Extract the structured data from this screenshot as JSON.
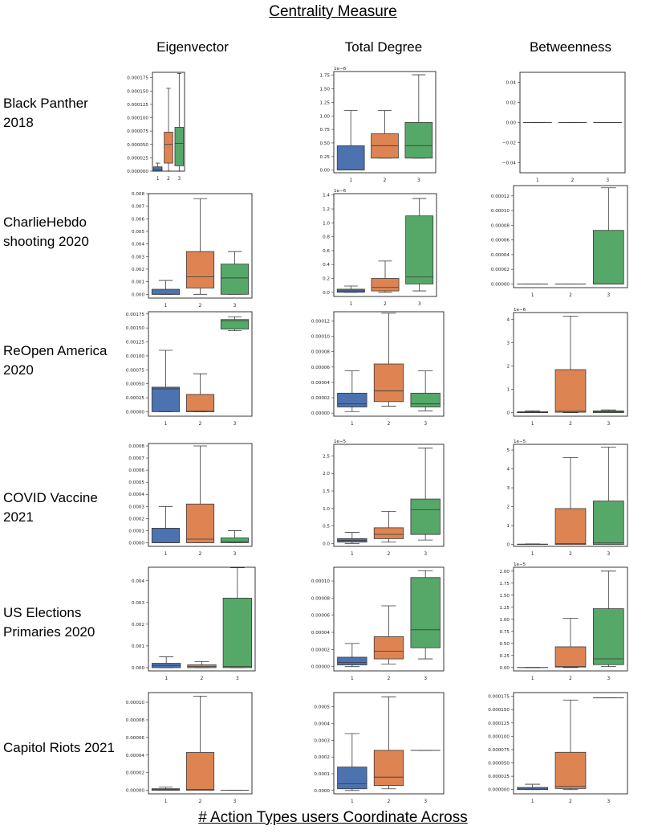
{
  "header": {
    "title": "Centrality Measure",
    "x_axis_label": "# Action Types users Coordinate Across",
    "columns": [
      "Eigenvector",
      "Total Degree",
      "Betweenness"
    ]
  },
  "rows": [
    {
      "line1": "Black Panther",
      "line2": "2018"
    },
    {
      "line1": "CharlieHebdo",
      "line2": "shooting 2020"
    },
    {
      "line1": "ReOpen America",
      "line2": "2020"
    },
    {
      "line1": "COVID Vaccine",
      "line2": "2021"
    },
    {
      "line1": "US Elections",
      "line2": "Primaries 2020"
    },
    {
      "line1": "Capitol Riots 2021",
      "line2": ""
    }
  ],
  "colors": {
    "g1": "#4c72b0",
    "g2": "#dd8452",
    "g3": "#55a868",
    "line": "#3a3a3a"
  },
  "chart_data": [
    {
      "type": "box",
      "row": 0,
      "col": 0,
      "categories": [
        "1",
        "2",
        "3"
      ],
      "ylim": [
        0,
        0.000185
      ],
      "offset": "",
      "ytick_values": [
        0,
        2.5e-05,
        5e-05,
        7.5e-05,
        0.0001,
        0.000125,
        0.00015,
        0.000175
      ],
      "ytick_labels": [
        "0.000000",
        "0.000025",
        "0.000050",
        "0.000075",
        "0.000100",
        "0.000125",
        "0.000150",
        "0.000175"
      ],
      "boxes": [
        {
          "wl": 0,
          "q1": 0,
          "med": 3e-06,
          "q3": 8e-06,
          "wh": 1.5e-05
        },
        {
          "wl": 0,
          "q1": 1.5e-05,
          "med": 5e-05,
          "q3": 7.3e-05,
          "wh": 0.000155
        },
        {
          "wl": 0,
          "q1": 1e-05,
          "med": 5.2e-05,
          "q3": 8.2e-05,
          "wh": 0.000183
        }
      ]
    },
    {
      "type": "box",
      "row": 0,
      "col": 1,
      "categories": [
        "1",
        "2",
        "3"
      ],
      "ylim": [
        -0.05,
        1.82
      ],
      "offset": "1e−6",
      "ytick_values": [
        0,
        0.25,
        0.5,
        0.75,
        1,
        1.25,
        1.5,
        1.75
      ],
      "ytick_labels": [
        "0.00",
        "0.25",
        "0.50",
        "0.75",
        "1.00",
        "1.25",
        "1.50",
        "1.75"
      ],
      "boxes": [
        {
          "wl": 0,
          "q1": 0,
          "med": 0,
          "q3": 0.45,
          "wh": 1.1
        },
        {
          "wl": 0.22,
          "q1": 0.22,
          "med": 0.45,
          "q3": 0.67,
          "wh": 1.1
        },
        {
          "wl": 0.22,
          "q1": 0.22,
          "med": 0.45,
          "q3": 0.88,
          "wh": 1.76
        }
      ]
    },
    {
      "type": "box",
      "row": 0,
      "col": 2,
      "categories": [
        "1",
        "2",
        "3"
      ],
      "ylim": [
        -0.05,
        0.05
      ],
      "offset": "",
      "ytick_values": [
        -0.04,
        -0.02,
        0,
        0.02,
        0.04
      ],
      "ytick_labels": [
        "−0.04",
        "−0.02",
        "0.00",
        "0.02",
        "0.04"
      ],
      "boxes": [
        {
          "wl": 0,
          "q1": 0,
          "med": 0,
          "q3": 0,
          "wh": 0
        },
        {
          "wl": 0,
          "q1": 0,
          "med": 0,
          "q3": 0,
          "wh": 0
        },
        {
          "wl": 0,
          "q1": 0,
          "med": 0,
          "q3": 0,
          "wh": 0
        }
      ]
    },
    {
      "type": "box",
      "row": 1,
      "col": 0,
      "categories": [
        "1",
        "2",
        "3"
      ],
      "ylim": [
        -0.0003,
        0.008
      ],
      "offset": "",
      "ytick_values": [
        0,
        0.001,
        0.002,
        0.003,
        0.004,
        0.005,
        0.006,
        0.007,
        0.008
      ],
      "ytick_labels": [
        "0.000",
        "0.001",
        "0.002",
        "0.003",
        "0.004",
        "0.005",
        "0.006",
        "0.007",
        "0.008"
      ],
      "boxes": [
        {
          "wl": 0,
          "q1": 0,
          "med": 0,
          "q3": 0.0004,
          "wh": 0.0011
        },
        {
          "wl": 0,
          "q1": 0.0005,
          "med": 0.0014,
          "q3": 0.0034,
          "wh": 0.0076
        },
        {
          "wl": 0,
          "q1": 0,
          "med": 0.0013,
          "q3": 0.0024,
          "wh": 0.0034
        }
      ]
    },
    {
      "type": "box",
      "row": 1,
      "col": 1,
      "categories": [
        "1",
        "2",
        "3"
      ],
      "ylim": [
        -0.06,
        1.42
      ],
      "offset": "1e−6",
      "ytick_values": [
        0,
        0.2,
        0.4,
        0.6,
        0.8,
        1.0,
        1.2,
        1.4
      ],
      "ytick_labels": [
        "0.0",
        "0.2",
        "0.4",
        "0.6",
        "0.8",
        "1.0",
        "1.2",
        "1.4"
      ],
      "boxes": [
        {
          "wl": 0,
          "q1": 0,
          "med": 0.02,
          "q3": 0.045,
          "wh": 0.09
        },
        {
          "wl": 0,
          "q1": 0.02,
          "med": 0.07,
          "q3": 0.2,
          "wh": 0.45
        },
        {
          "wl": 0.02,
          "q1": 0.12,
          "med": 0.22,
          "q3": 1.1,
          "wh": 1.35
        }
      ]
    },
    {
      "type": "box",
      "row": 1,
      "col": 2,
      "categories": [
        "1",
        "2",
        "3"
      ],
      "ylim": [
        -5e-06,
        0.000134
      ],
      "offset": "",
      "ytick_values": [
        0,
        2e-05,
        4e-05,
        6e-05,
        8e-05,
        0.0001,
        0.00012
      ],
      "ytick_labels": [
        "0.00000",
        "0.00002",
        "0.00004",
        "0.00006",
        "0.00008",
        "0.00010",
        "0.00012"
      ],
      "boxes": [
        {
          "wl": 0,
          "q1": 0,
          "med": 0,
          "q3": 0,
          "wh": 0
        },
        {
          "wl": 0,
          "q1": 0,
          "med": 0,
          "q3": 0,
          "wh": 0
        },
        {
          "wl": 0,
          "q1": 0,
          "med": 0,
          "q3": 7.3e-05,
          "wh": 0.000131
        }
      ]
    },
    {
      "type": "box",
      "row": 2,
      "col": 0,
      "categories": [
        "1",
        "2",
        "3"
      ],
      "ylim": [
        -8e-05,
        0.00179
      ],
      "offset": "",
      "ytick_values": [
        0,
        0.00025,
        0.0005,
        0.00075,
        0.001,
        0.00125,
        0.0015,
        0.00175
      ],
      "ytick_labels": [
        "0.00000",
        "0.00025",
        "0.00050",
        "0.00075",
        "0.00100",
        "0.00125",
        "0.00150",
        "0.00175"
      ],
      "boxes": [
        {
          "wl": 0,
          "q1": 0,
          "med": 0.00041,
          "q3": 0.00044,
          "wh": 0.0011
        },
        {
          "wl": 0,
          "q1": 0,
          "med": 1e-05,
          "q3": 0.00031,
          "wh": 0.00068
        },
        {
          "wl": 0.00145,
          "q1": 0.00148,
          "med": 0.00163,
          "q3": 0.00165,
          "wh": 0.0017
        }
      ]
    },
    {
      "type": "box",
      "row": 2,
      "col": 1,
      "categories": [
        "1",
        "2",
        "3"
      ],
      "ylim": [
        -4e-06,
        0.000132
      ],
      "offset": "",
      "ytick_values": [
        0,
        2e-05,
        4e-05,
        6e-05,
        8e-05,
        0.0001,
        0.00012
      ],
      "ytick_labels": [
        "0.00000",
        "0.00002",
        "0.00004",
        "0.00006",
        "0.00008",
        "0.00010",
        "0.00012"
      ],
      "boxes": [
        {
          "wl": 2e-06,
          "q1": 8e-06,
          "med": 1.2e-05,
          "q3": 2.6e-05,
          "wh": 5.5e-05
        },
        {
          "wl": 9e-06,
          "q1": 1.5e-05,
          "med": 2.9e-05,
          "q3": 6.4e-05,
          "wh": 0.00013
        },
        {
          "wl": 3e-06,
          "q1": 8e-06,
          "med": 1.2e-05,
          "q3": 2.6e-05,
          "wh": 5.5e-05
        }
      ]
    },
    {
      "type": "box",
      "row": 2,
      "col": 2,
      "categories": [
        "1",
        "2",
        "3"
      ],
      "ylim": [
        -0.15,
        4.3
      ],
      "offset": "1e−6",
      "ytick_values": [
        0,
        1,
        2,
        3,
        4
      ],
      "ytick_labels": [
        "0",
        "1",
        "2",
        "3",
        "4"
      ],
      "boxes": [
        {
          "wl": 0,
          "q1": 0,
          "med": 0.02,
          "q3": 0.04,
          "wh": 0.08
        },
        {
          "wl": 0,
          "q1": 0.02,
          "med": 0.06,
          "q3": 1.85,
          "wh": 4.15
        },
        {
          "wl": 0,
          "q1": 0,
          "med": 0.04,
          "q3": 0.08,
          "wh": 0.12
        }
      ]
    },
    {
      "type": "box",
      "row": 3,
      "col": 0,
      "categories": [
        "1",
        "2",
        "3"
      ],
      "ylim": [
        -3e-05,
        0.00082
      ],
      "offset": "",
      "ytick_values": [
        0,
        0.0001,
        0.0002,
        0.0003,
        0.0004,
        0.0005,
        0.0006,
        0.0007,
        0.0008
      ],
      "ytick_labels": [
        "0.0000",
        "0.0001",
        "0.0002",
        "0.0003",
        "0.0004",
        "0.0005",
        "0.0006",
        "0.0007",
        "0.0008"
      ],
      "boxes": [
        {
          "wl": 0,
          "q1": 0,
          "med": 0,
          "q3": 0.00012,
          "wh": 0.0003
        },
        {
          "wl": 0,
          "q1": 0,
          "med": 3e-05,
          "q3": 0.00032,
          "wh": 0.0008
        },
        {
          "wl": 0,
          "q1": 0,
          "med": 1e-05,
          "q3": 4e-05,
          "wh": 0.0001
        }
      ]
    },
    {
      "type": "box",
      "row": 3,
      "col": 1,
      "categories": [
        "1",
        "2",
        "3"
      ],
      "ylim": [
        -0.08,
        2.83
      ],
      "offset": "1e−5",
      "ytick_values": [
        0,
        0.5,
        1.0,
        1.5,
        2.0,
        2.5
      ],
      "ytick_labels": [
        "0.0",
        "0.5",
        "1.0",
        "1.5",
        "2.0",
        "2.5"
      ],
      "boxes": [
        {
          "wl": 0,
          "q1": 0.04,
          "med": 0.09,
          "q3": 0.14,
          "wh": 0.32
        },
        {
          "wl": 0.04,
          "q1": 0.14,
          "med": 0.26,
          "q3": 0.45,
          "wh": 0.92
        },
        {
          "wl": 0.1,
          "q1": 0.26,
          "med": 0.96,
          "q3": 1.27,
          "wh": 2.72
        }
      ]
    },
    {
      "type": "box",
      "row": 3,
      "col": 2,
      "categories": [
        "1",
        "2",
        "3"
      ],
      "ylim": [
        -0.1,
        5.3
      ],
      "offset": "1e−5",
      "ytick_values": [
        0,
        1,
        2,
        3,
        4,
        5
      ],
      "ytick_labels": [
        "0",
        "1",
        "2",
        "3",
        "4",
        "5"
      ],
      "boxes": [
        {
          "wl": 0,
          "q1": 0,
          "med": 0,
          "q3": 0.02,
          "wh": 0.03
        },
        {
          "wl": 0,
          "q1": 0,
          "med": 0.05,
          "q3": 1.9,
          "wh": 4.6
        },
        {
          "wl": 0,
          "q1": 0,
          "med": 0.08,
          "q3": 2.3,
          "wh": 5.15
        }
      ]
    },
    {
      "type": "box",
      "row": 4,
      "col": 0,
      "categories": [
        "1",
        "2",
        "3"
      ],
      "ylim": [
        -0.00015,
        0.00462
      ],
      "offset": "",
      "ytick_values": [
        0,
        0.001,
        0.002,
        0.003,
        0.004
      ],
      "ytick_labels": [
        "0.000",
        "0.001",
        "0.002",
        "0.003",
        "0.004"
      ],
      "boxes": [
        {
          "wl": 0,
          "q1": 0,
          "med": 0.0001,
          "q3": 0.0002,
          "wh": 0.0005
        },
        {
          "wl": 0,
          "q1": 0,
          "med": 5e-05,
          "q3": 0.00013,
          "wh": 0.00028
        },
        {
          "wl": 0,
          "q1": 0,
          "med": 5e-05,
          "q3": 0.0032,
          "wh": 0.0046
        }
      ]
    },
    {
      "type": "box",
      "row": 4,
      "col": 1,
      "categories": [
        "1",
        "2",
        "3"
      ],
      "ylim": [
        -5e-06,
        0.000116
      ],
      "offset": "",
      "ytick_values": [
        0,
        2e-05,
        4e-05,
        6e-05,
        8e-05,
        0.0001
      ],
      "ytick_labels": [
        "0.00000",
        "0.00002",
        "0.00004",
        "0.00006",
        "0.00008",
        "0.00010"
      ],
      "boxes": [
        {
          "wl": 0,
          "q1": 2e-06,
          "med": 5e-06,
          "q3": 1.1e-05,
          "wh": 2.7e-05
        },
        {
          "wl": 3e-06,
          "q1": 9e-06,
          "med": 1.8e-05,
          "q3": 3.5e-05,
          "wh": 7.1e-05
        },
        {
          "wl": 9e-06,
          "q1": 2.2e-05,
          "med": 4.3e-05,
          "q3": 0.000104,
          "wh": 0.000112
        }
      ]
    },
    {
      "type": "box",
      "row": 4,
      "col": 2,
      "categories": [
        "1",
        "2",
        "3"
      ],
      "ylim": [
        -0.07,
        2.08
      ],
      "offset": "1e−5",
      "ytick_values": [
        0,
        0.25,
        0.5,
        0.75,
        1.0,
        1.25,
        1.5,
        1.75,
        2.0
      ],
      "ytick_labels": [
        "0.00",
        "0.25",
        "0.50",
        "0.75",
        "1.00",
        "1.25",
        "1.50",
        "1.75",
        "2.00"
      ],
      "boxes": [
        {
          "wl": 0,
          "q1": 0,
          "med": 0,
          "q3": 0,
          "wh": 0
        },
        {
          "wl": 0,
          "q1": 0.01,
          "med": 0.02,
          "q3": 0.43,
          "wh": 1.02
        },
        {
          "wl": 0.02,
          "q1": 0.06,
          "med": 0.18,
          "q3": 1.22,
          "wh": 2.0
        }
      ]
    },
    {
      "type": "box",
      "row": 5,
      "col": 0,
      "categories": [
        "1",
        "2",
        "3"
      ],
      "ylim": [
        -4e-06,
        0.000111
      ],
      "offset": "",
      "ytick_values": [
        0,
        2e-05,
        4e-05,
        6e-05,
        8e-05,
        0.0001
      ],
      "ytick_labels": [
        "0.00000",
        "0.00002",
        "0.00004",
        "0.00006",
        "0.00008",
        "0.00010"
      ],
      "boxes": [
        {
          "wl": 0,
          "q1": 0,
          "med": 8e-07,
          "q3": 1.8e-06,
          "wh": 3.5e-06
        },
        {
          "wl": 0,
          "q1": 0,
          "med": 1e-06,
          "q3": 4.3e-05,
          "wh": 0.000107
        },
        {
          "wl": 0,
          "q1": 0,
          "med": 0,
          "q3": 0,
          "wh": 0
        }
      ]
    },
    {
      "type": "box",
      "row": 5,
      "col": 1,
      "categories": [
        "1",
        "2",
        "3"
      ],
      "ylim": [
        -2e-05,
        0.000585
      ],
      "offset": "",
      "ytick_values": [
        0,
        0.0001,
        0.0002,
        0.0003,
        0.0004,
        0.0005
      ],
      "ytick_labels": [
        "0.0000",
        "0.0001",
        "0.0002",
        "0.0003",
        "0.0004",
        "0.0005"
      ],
      "boxes": [
        {
          "wl": 0,
          "q1": 1e-05,
          "med": 4e-05,
          "q3": 0.00014,
          "wh": 0.00034
        },
        {
          "wl": 1e-05,
          "q1": 3e-05,
          "med": 8e-05,
          "q3": 0.00024,
          "wh": 0.00056
        },
        {
          "wl": 0.00024,
          "q1": 0.00024,
          "med": 0.00024,
          "q3": 0.00024,
          "wh": 0.00024
        }
      ]
    },
    {
      "type": "box",
      "row": 5,
      "col": 2,
      "categories": [
        "1",
        "2",
        "3"
      ],
      "ylim": [
        -8e-06,
        0.000182
      ],
      "offset": "",
      "ytick_values": [
        0,
        2.5e-05,
        5e-05,
        7.5e-05,
        0.0001,
        0.000125,
        0.00015,
        0.000175
      ],
      "ytick_labels": [
        "0.000000",
        "0.000025",
        "0.000050",
        "0.000075",
        "0.000100",
        "0.000125",
        "0.000150",
        "0.000175"
      ],
      "boxes": [
        {
          "wl": 0,
          "q1": 0,
          "med": 1e-06,
          "q3": 4e-06,
          "wh": 1e-05
        },
        {
          "wl": 0,
          "q1": 2e-06,
          "med": 6e-06,
          "q3": 7e-05,
          "wh": 0.000168
        },
        {
          "wl": 0.000172,
          "q1": 0.000172,
          "med": 0.000172,
          "q3": 0.000172,
          "wh": 0.000172
        }
      ]
    }
  ]
}
